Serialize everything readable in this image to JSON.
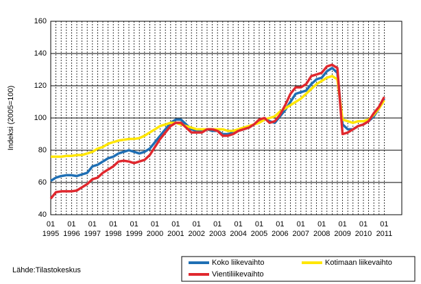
{
  "chart_data": {
    "type": "line",
    "y_label": "Indeksi (2005=100)",
    "source": "Lähde:Tilastokeskus",
    "categories": [
      "01",
      null,
      null,
      null,
      "01",
      null,
      null,
      null,
      "01",
      null,
      null,
      null,
      "01",
      null,
      null,
      null,
      "01",
      null,
      null,
      null,
      "01",
      null,
      null,
      null,
      "01",
      null,
      null,
      null,
      "01",
      null,
      null,
      null,
      "01",
      null,
      null,
      null,
      "01",
      null,
      null,
      null,
      "01",
      null,
      null,
      null,
      "01",
      null,
      null,
      null,
      "01",
      null,
      null,
      null,
      "01",
      null,
      null,
      null,
      "01",
      null,
      null,
      null,
      "01",
      null,
      null,
      null,
      "01"
    ],
    "years": [
      "1995",
      null,
      null,
      null,
      "1996",
      null,
      null,
      null,
      "1997",
      null,
      null,
      null,
      "1998",
      null,
      null,
      null,
      "1999",
      null,
      null,
      null,
      "2000",
      null,
      null,
      null,
      "2001",
      null,
      null,
      null,
      "2002",
      null,
      null,
      null,
      "2003",
      null,
      null,
      null,
      "2004",
      null,
      null,
      null,
      "2005",
      null,
      null,
      null,
      "2006",
      null,
      null,
      null,
      "2007",
      null,
      null,
      null,
      "2008",
      null,
      null,
      null,
      "2009",
      null,
      null,
      null,
      "2010",
      null,
      null,
      null,
      "2011"
    ],
    "ylim": [
      40,
      160
    ],
    "yticks": [
      40,
      60,
      80,
      100,
      120,
      140,
      160
    ],
    "grid": true,
    "series": [
      {
        "name": "Koko liikevaihto",
        "color": "#1f6fb4",
        "values": [
          61,
          63,
          64,
          64.5,
          64.5,
          64,
          65,
          66,
          70,
          71,
          73,
          75,
          76,
          78,
          79,
          80,
          79,
          78,
          79,
          81,
          85,
          89,
          93,
          97,
          99,
          99,
          96,
          93,
          92,
          92,
          93,
          92,
          92,
          90,
          90,
          91,
          92,
          93,
          94,
          96,
          98,
          100,
          98,
          97,
          101,
          105,
          110,
          115,
          116,
          117,
          121,
          124,
          125,
          129,
          131,
          128,
          96,
          93,
          93,
          95,
          96,
          98,
          101,
          106,
          112
        ]
      },
      {
        "name": "Kotimaan liikevaihto",
        "color": "#ffe600",
        "values": [
          76,
          76,
          76,
          76.5,
          76.5,
          77,
          77,
          78,
          79,
          81,
          82,
          84,
          85,
          86,
          86.5,
          87,
          87,
          87.5,
          89,
          91,
          93,
          95,
          96,
          97,
          97,
          96,
          95,
          94,
          93,
          93,
          93,
          93,
          93,
          93,
          92,
          92,
          93,
          94,
          95,
          96,
          97,
          99,
          100,
          101,
          104,
          106,
          108,
          110,
          112,
          115,
          118,
          121,
          123,
          125,
          126,
          124,
          99,
          98,
          97,
          98,
          98,
          99,
          102,
          106,
          111
        ]
      },
      {
        "name": "Vientiliikevaihto",
        "color": "#e0282e",
        "values": [
          50,
          54,
          54.5,
          54.5,
          54.5,
          55,
          57,
          59,
          62,
          63,
          66,
          68,
          70,
          73,
          73.5,
          73,
          72,
          73,
          74,
          77,
          82,
          87,
          91,
          95,
          97,
          97,
          94,
          91,
          91,
          91,
          93,
          93,
          92,
          89,
          89,
          90,
          92,
          93,
          94,
          96,
          99,
          100,
          97,
          98,
          102,
          108,
          115,
          119,
          119,
          121,
          126,
          127,
          128,
          132,
          133,
          131,
          90,
          91,
          93,
          95,
          96,
          98,
          103,
          107,
          113
        ]
      }
    ]
  }
}
